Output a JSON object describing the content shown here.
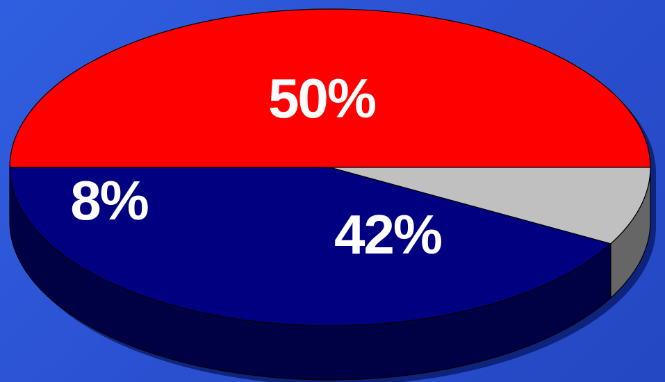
{
  "chart_data": {
    "type": "pie",
    "style": "3d",
    "slices": [
      {
        "label": "50%",
        "value": 50,
        "color": "#ff0000",
        "side_color": "#800000"
      },
      {
        "label": "42%",
        "value": 42,
        "color": "#000080",
        "side_color": "#000044"
      },
      {
        "label": "8%",
        "value": 8,
        "color": "#c0c0c0",
        "side_color": "#666666"
      }
    ],
    "colors": {
      "background_top": "#2f5fe0",
      "background_bottom": "#2447c2",
      "label_text": "#ffffff"
    }
  }
}
